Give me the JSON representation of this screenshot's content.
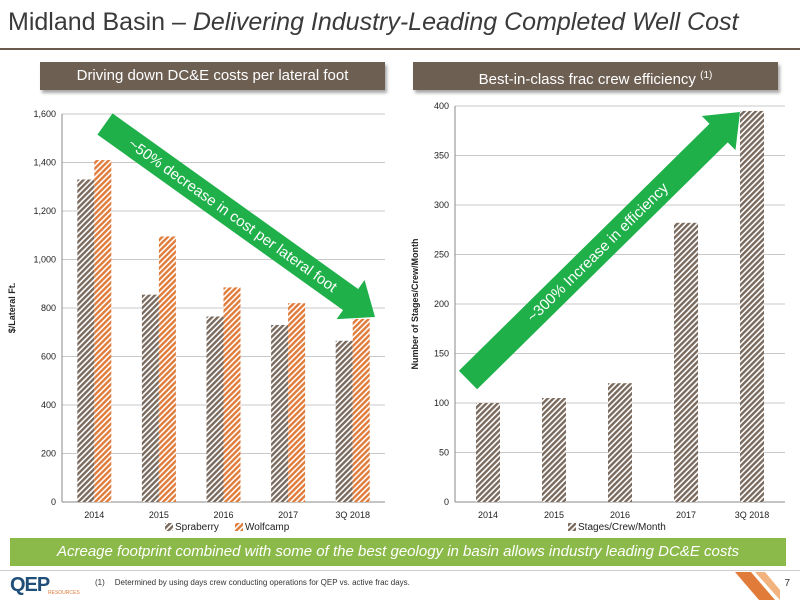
{
  "title": {
    "main": "Midland Basin – ",
    "italic": "Delivering Industry-Leading Completed Well Cost"
  },
  "left_banner": "Driving down DC&E costs per lateral foot",
  "right_banner": {
    "text": "Best-in-class frac crew efficiency ",
    "sup": "(1)"
  },
  "bottom_banner": "Acreage footprint combined with some of the best geology in basin allows industry leading DC&E costs",
  "footnote": {
    "num": "(1)",
    "text": "Determined by using days crew conducting operations for QEP vs. active frac days."
  },
  "page_number": "7",
  "logo": {
    "word": "QEP",
    "sub": "RESOURCES"
  },
  "colors": {
    "banner": "#6e5f53",
    "green_arrow": "#1fb04a",
    "spraberry": "#7a6a5e",
    "wolfcamp": "#e07b39",
    "bottom_banner": "#8cba4a"
  },
  "chart_data": [
    {
      "type": "bar",
      "categories": [
        "2014",
        "2015",
        "2016",
        "2017",
        "3Q 2018"
      ],
      "series": [
        {
          "name": "Spraberry",
          "values": [
            1330,
            855,
            765,
            730,
            665
          ],
          "color": "#7a6a5e"
        },
        {
          "name": "Wolfcamp",
          "values": [
            1410,
            1095,
            885,
            820,
            755
          ],
          "color": "#e07b39"
        }
      ],
      "ylabel": "$/Lateral Ft.",
      "ylim": [
        0,
        1600
      ],
      "yticks": [
        0,
        200,
        400,
        600,
        800,
        1000,
        1200,
        1400,
        1600
      ],
      "ytick_labels": [
        "0",
        "200",
        "400",
        "600",
        "800",
        "1,000",
        "1,200",
        "1,400",
        "1,600"
      ],
      "legend_position": "bottom",
      "grid": true,
      "annotation": "~50% decrease in cost per lateral foot"
    },
    {
      "type": "bar",
      "categories": [
        "2014",
        "2015",
        "2016",
        "2017",
        "3Q 2018"
      ],
      "series": [
        {
          "name": "Stages/Crew/Month",
          "values": [
            100,
            105,
            120,
            282,
            395
          ],
          "color": "#7a6a5e"
        }
      ],
      "ylabel": "Number of Stages/Crew/Month",
      "ylim": [
        0,
        400
      ],
      "yticks": [
        0,
        50,
        100,
        150,
        200,
        250,
        300,
        350,
        400
      ],
      "ytick_labels": [
        "0",
        "50",
        "100",
        "150",
        "200",
        "250",
        "300",
        "350",
        "400"
      ],
      "legend_position": "bottom",
      "grid": true,
      "annotation": "~300% Increase in efficiency"
    }
  ]
}
